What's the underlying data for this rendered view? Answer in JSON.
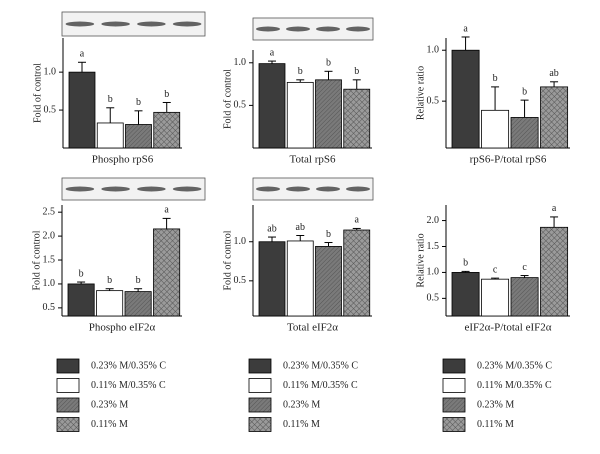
{
  "chart_data": [
    {
      "type": "bar",
      "title": "Phospho rpS6",
      "ylabel": "Fold of control",
      "values": [
        1.0,
        0.33,
        0.31,
        0.47
      ],
      "errors": [
        0.13,
        0.2,
        0.18,
        0.13
      ],
      "annotations": [
        "a",
        "b",
        "b",
        "b"
      ],
      "ylim": [
        0,
        1.45
      ],
      "yticks": [
        0.5,
        {
          "value": 1.0,
          "label": "1.0"
        }
      ]
    },
    {
      "type": "bar",
      "title": "Total rpS6",
      "ylabel": "Fold of control",
      "values": [
        0.99,
        0.77,
        0.8,
        0.69
      ],
      "errors": [
        0.03,
        0.03,
        0.1,
        0.11
      ],
      "annotations": [
        "a",
        "b",
        "b",
        "b"
      ],
      "ylim": [
        0,
        1.15
      ],
      "yticks": [
        0.5,
        {
          "value": 1.0,
          "label": "1.0"
        }
      ]
    },
    {
      "type": "bar",
      "title": "rpS6-P/total rpS6",
      "ylabel": "Relative ratio",
      "values": [
        1.0,
        0.41,
        0.34,
        0.64
      ],
      "errors": [
        0.13,
        0.23,
        0.17,
        0.05
      ],
      "annotations": [
        "a",
        "b",
        "b",
        "ab"
      ],
      "ylim": [
        0.04,
        1.12
      ],
      "yticks": [
        0.5,
        {
          "value": 1.0,
          "label": "1.0"
        }
      ]
    },
    {
      "type": "bar",
      "title": "Phospho eIF2α",
      "ylabel": "Fold of control",
      "values": [
        1.0,
        0.86,
        0.84,
        2.15
      ],
      "errors": [
        0.04,
        0.04,
        0.06,
        0.22
      ],
      "annotations": [
        "b",
        "b",
        "b",
        "a"
      ],
      "ylim": [
        0.33,
        2.65
      ],
      "yticks": [
        0.5,
        {
          "value": 1.0,
          "label": "1.0"
        },
        1.5,
        {
          "value": 2.0,
          "label": "2.0"
        },
        2.5
      ]
    },
    {
      "type": "bar",
      "title": "Total eIF2α",
      "ylabel": "Fold of control",
      "values": [
        1.0,
        1.01,
        0.94,
        1.15
      ],
      "errors": [
        0.06,
        0.07,
        0.05,
        0.02
      ],
      "annotations": [
        "ab",
        "ab",
        "b",
        "a"
      ],
      "ylim": [
        0.05,
        1.47
      ],
      "yticks": [
        0.5,
        {
          "value": 1.0,
          "label": "1.0"
        }
      ]
    },
    {
      "type": "bar",
      "title": "eIF2α-P/total eIF2α",
      "ylabel": "Relative ratio",
      "values": [
        1.0,
        0.87,
        0.9,
        1.87
      ],
      "errors": [
        0.02,
        0.02,
        0.04,
        0.2
      ],
      "annotations": [
        "b",
        "c",
        "c",
        "a"
      ],
      "ylim": [
        0.16,
        2.3
      ],
      "yticks": [
        0.5,
        {
          "value": 1.0,
          "label": "1.0"
        },
        1.5,
        {
          "value": 2.0,
          "label": "2.0"
        }
      ]
    }
  ],
  "legend": [
    {
      "label": "0.23% M/0.35% C",
      "color": "#3c3c3c",
      "pattern": "solid"
    },
    {
      "label": "0.11% M/0.35% C",
      "color": "#ffffff",
      "pattern": "solid"
    },
    {
      "label": "0.23% M",
      "color": "#7a7a7a",
      "pattern": "diagonal"
    },
    {
      "label": "0.11% M",
      "color": "#8a8a8a",
      "pattern": "cross"
    }
  ]
}
